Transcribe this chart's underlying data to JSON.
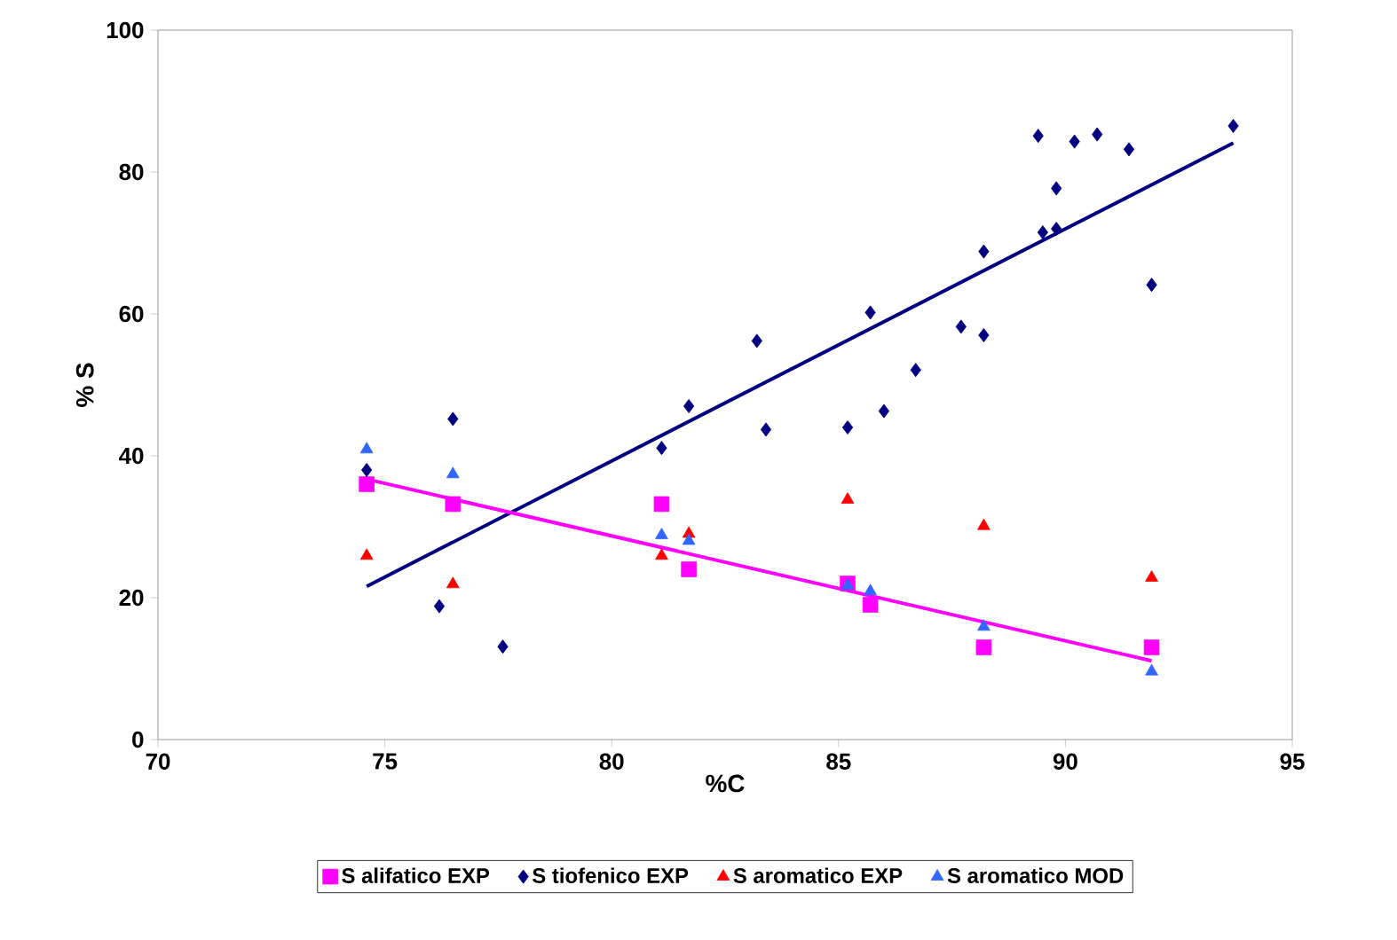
{
  "chart_data": {
    "type": "scatter",
    "xlabel": "%C",
    "ylabel": "% S",
    "xlim": [
      70,
      95
    ],
    "ylim": [
      0,
      100
    ],
    "xticks": [
      70,
      75,
      80,
      85,
      90,
      95
    ],
    "yticks": [
      0,
      20,
      40,
      60,
      80,
      100
    ],
    "grid": false,
    "legend": "bottom",
    "series": [
      {
        "name": "S alifatico EXP",
        "color": "#ff00ff",
        "marker": "square",
        "x": [
          74.6,
          76.5,
          81.1,
          81.7,
          85.2,
          85.7,
          88.2,
          91.9
        ],
        "values": [
          36,
          33.2,
          33.2,
          24,
          22,
          19,
          13,
          13
        ]
      },
      {
        "name": "S tiofenico EXP",
        "color": "#000080",
        "marker": "diamond",
        "x": [
          74.6,
          76.2,
          76.5,
          77.6,
          81.1,
          81.7,
          83.2,
          83.4,
          85.2,
          85.7,
          86.0,
          86.7,
          87.7,
          88.2,
          88.2,
          89.4,
          89.5,
          89.8,
          89.8,
          90.2,
          90.7,
          91.4,
          91.9,
          93.7
        ],
        "values": [
          38,
          18.8,
          45.2,
          13.1,
          41.1,
          47,
          56.2,
          43.7,
          44,
          60.2,
          46.3,
          52.1,
          58.2,
          57,
          68.8,
          85.1,
          71.5,
          72,
          77.7,
          84.3,
          85.3,
          83.2,
          64.1,
          86.5
        ]
      },
      {
        "name": "S aromatico EXP",
        "color": "#ff0000",
        "marker": "triangle",
        "x": [
          74.6,
          76.5,
          81.1,
          81.7,
          85.2,
          88.2,
          91.9
        ],
        "values": [
          25.9,
          21.9,
          25.9,
          29,
          33.8,
          30.1,
          22.8
        ]
      },
      {
        "name": "S aromatico MOD",
        "color": "#3366ff",
        "marker": "triangle",
        "x": [
          74.6,
          76.5,
          81.1,
          81.7,
          85.2,
          85.7,
          88.2,
          91.9
        ],
        "values": [
          40.9,
          37.4,
          28.8,
          28,
          21.7,
          20.9,
          15.9,
          9.6
        ]
      },
      {
        "type": "line",
        "color": "#000080",
        "marker": "none",
        "x": [
          74.6,
          93.7
        ],
        "values": [
          21.6,
          84.1
        ]
      },
      {
        "type": "line",
        "color": "#ff00ff",
        "marker": "none",
        "x": [
          74.6,
          91.9
        ],
        "values": [
          36.7,
          11.1
        ]
      }
    ]
  }
}
